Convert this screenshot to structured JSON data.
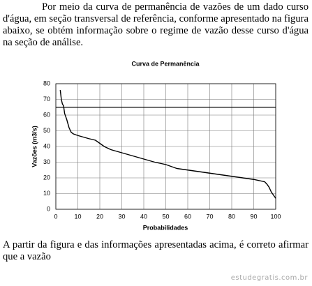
{
  "intro": "Por meio da curva de permanência de vazões de um dado curso d'água, em seção transversal de referência, conforme apresentado na figura abaixo, se obtém informação sobre o regime de vazão desse curso d'água na seção de análise.",
  "chart_data": {
    "type": "line",
    "title": "Curva de Permanência",
    "x_label": "Probabilidades",
    "y_label": "Vazões (m3/s)",
    "x": [
      2,
      2.5,
      3,
      3.5,
      4,
      5,
      6,
      7,
      8,
      10,
      15,
      18,
      20,
      22,
      25,
      30,
      35,
      40,
      45,
      50,
      55,
      60,
      65,
      70,
      75,
      80,
      85,
      90,
      95,
      96,
      97,
      98,
      99,
      100
    ],
    "values": [
      76,
      70,
      67,
      66,
      61,
      57,
      52,
      49,
      48,
      47,
      45,
      44,
      42,
      40,
      38,
      36,
      34,
      32,
      30,
      28.5,
      26,
      25,
      24,
      23,
      22,
      21,
      20,
      19,
      17.5,
      16,
      14,
      11,
      9,
      7
    ],
    "color": "#000000",
    "reference_line": 65,
    "xlim": [
      0,
      100
    ],
    "xticks": [
      0,
      10,
      20,
      30,
      40,
      50,
      60,
      70,
      80,
      90,
      100
    ],
    "ylim": [
      0,
      80
    ],
    "yticks": [
      0,
      10,
      20,
      30,
      40,
      50,
      60,
      70,
      80
    ],
    "grid": true
  },
  "question": "A partir da figura e das informações apresentadas acima, é correto afirmar que a vazão",
  "watermark": "estudegratis.com.br"
}
